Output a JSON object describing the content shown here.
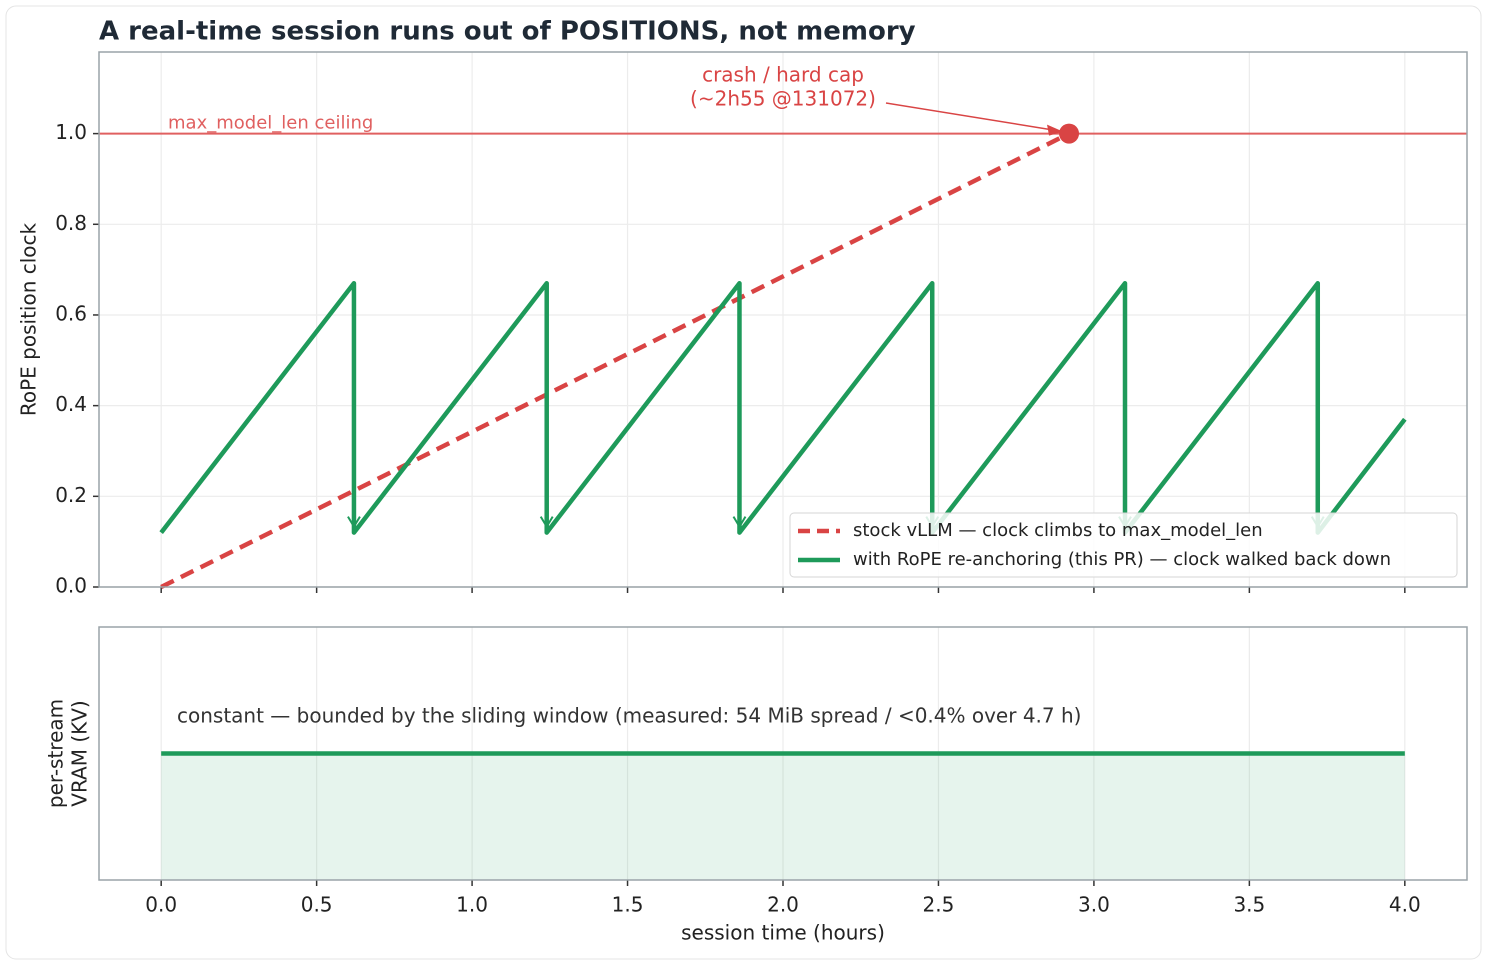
{
  "chart_data": [
    {
      "type": "line",
      "title": "A real-time session runs out of POSITIONS, not memory",
      "ylabel": "RoPE position clock",
      "ylim": [
        0,
        1.18
      ],
      "yticks": [
        {
          "value": 0,
          "label": "0.0"
        },
        {
          "value": 0.2,
          "label": "0.2"
        },
        {
          "value": 0.4,
          "label": "0.4"
        },
        {
          "value": 0.6,
          "label": "0.6"
        },
        {
          "value": 0.8,
          "label": "0.8"
        },
        {
          "value": 1.0,
          "label": "1.0"
        }
      ],
      "grid": true,
      "legend": "lower right",
      "series": [
        {
          "name": "stock vLLM — clock climbs to max_model_len",
          "color": "#d94444",
          "style": "dashed",
          "x": [
            0,
            2.92
          ],
          "values": [
            0,
            1.0
          ]
        },
        {
          "name": "with RoPE re-anchoring (this PR) — clock walked back down",
          "color": "#1e9a5a",
          "style": "solid",
          "x": [
            0,
            0.62,
            0.62,
            1.24,
            1.24,
            1.86,
            1.86,
            2.48,
            2.48,
            3.1,
            3.1,
            3.72,
            3.72,
            4.0
          ],
          "values": [
            0.12,
            0.67,
            0.12,
            0.67,
            0.12,
            0.67,
            0.12,
            0.67,
            0.12,
            0.67,
            0.12,
            0.67,
            0.12,
            0.37
          ]
        }
      ],
      "ceiling": {
        "value": 1.0,
        "label": "max_model_len ceiling",
        "color": "#e06060"
      },
      "crash": {
        "x": 2.92,
        "y": 1.0,
        "label": [
          "crash / hard cap",
          "(~2h55 @131072)"
        ],
        "color": "#d94444"
      }
    },
    {
      "type": "line",
      "ylabel": [
        "per-stream",
        "VRAM (KV)"
      ],
      "xlabel": "session time (hours)",
      "xlim": [
        -0.2,
        4.2
      ],
      "xticks": [
        {
          "value": 0,
          "label": "0.0"
        },
        {
          "value": 0.5,
          "label": "0.5"
        },
        {
          "value": 1.0,
          "label": "1.0"
        },
        {
          "value": 1.5,
          "label": "1.5"
        },
        {
          "value": 2.0,
          "label": "2.0"
        },
        {
          "value": 2.5,
          "label": "2.5"
        },
        {
          "value": 3.0,
          "label": "3.0"
        },
        {
          "value": 3.5,
          "label": "3.5"
        },
        {
          "value": 4.0,
          "label": "4.0"
        }
      ],
      "ylim": [
        0,
        2
      ],
      "grid": true,
      "fill": true,
      "annotation": "constant — bounded by the sliding window  (measured: 54 MiB spread / <0.4% over 4.7 h)",
      "series": [
        {
          "color": "#1e9a5a",
          "x": [
            0,
            4.0
          ],
          "values": [
            1,
            1
          ]
        }
      ]
    }
  ]
}
